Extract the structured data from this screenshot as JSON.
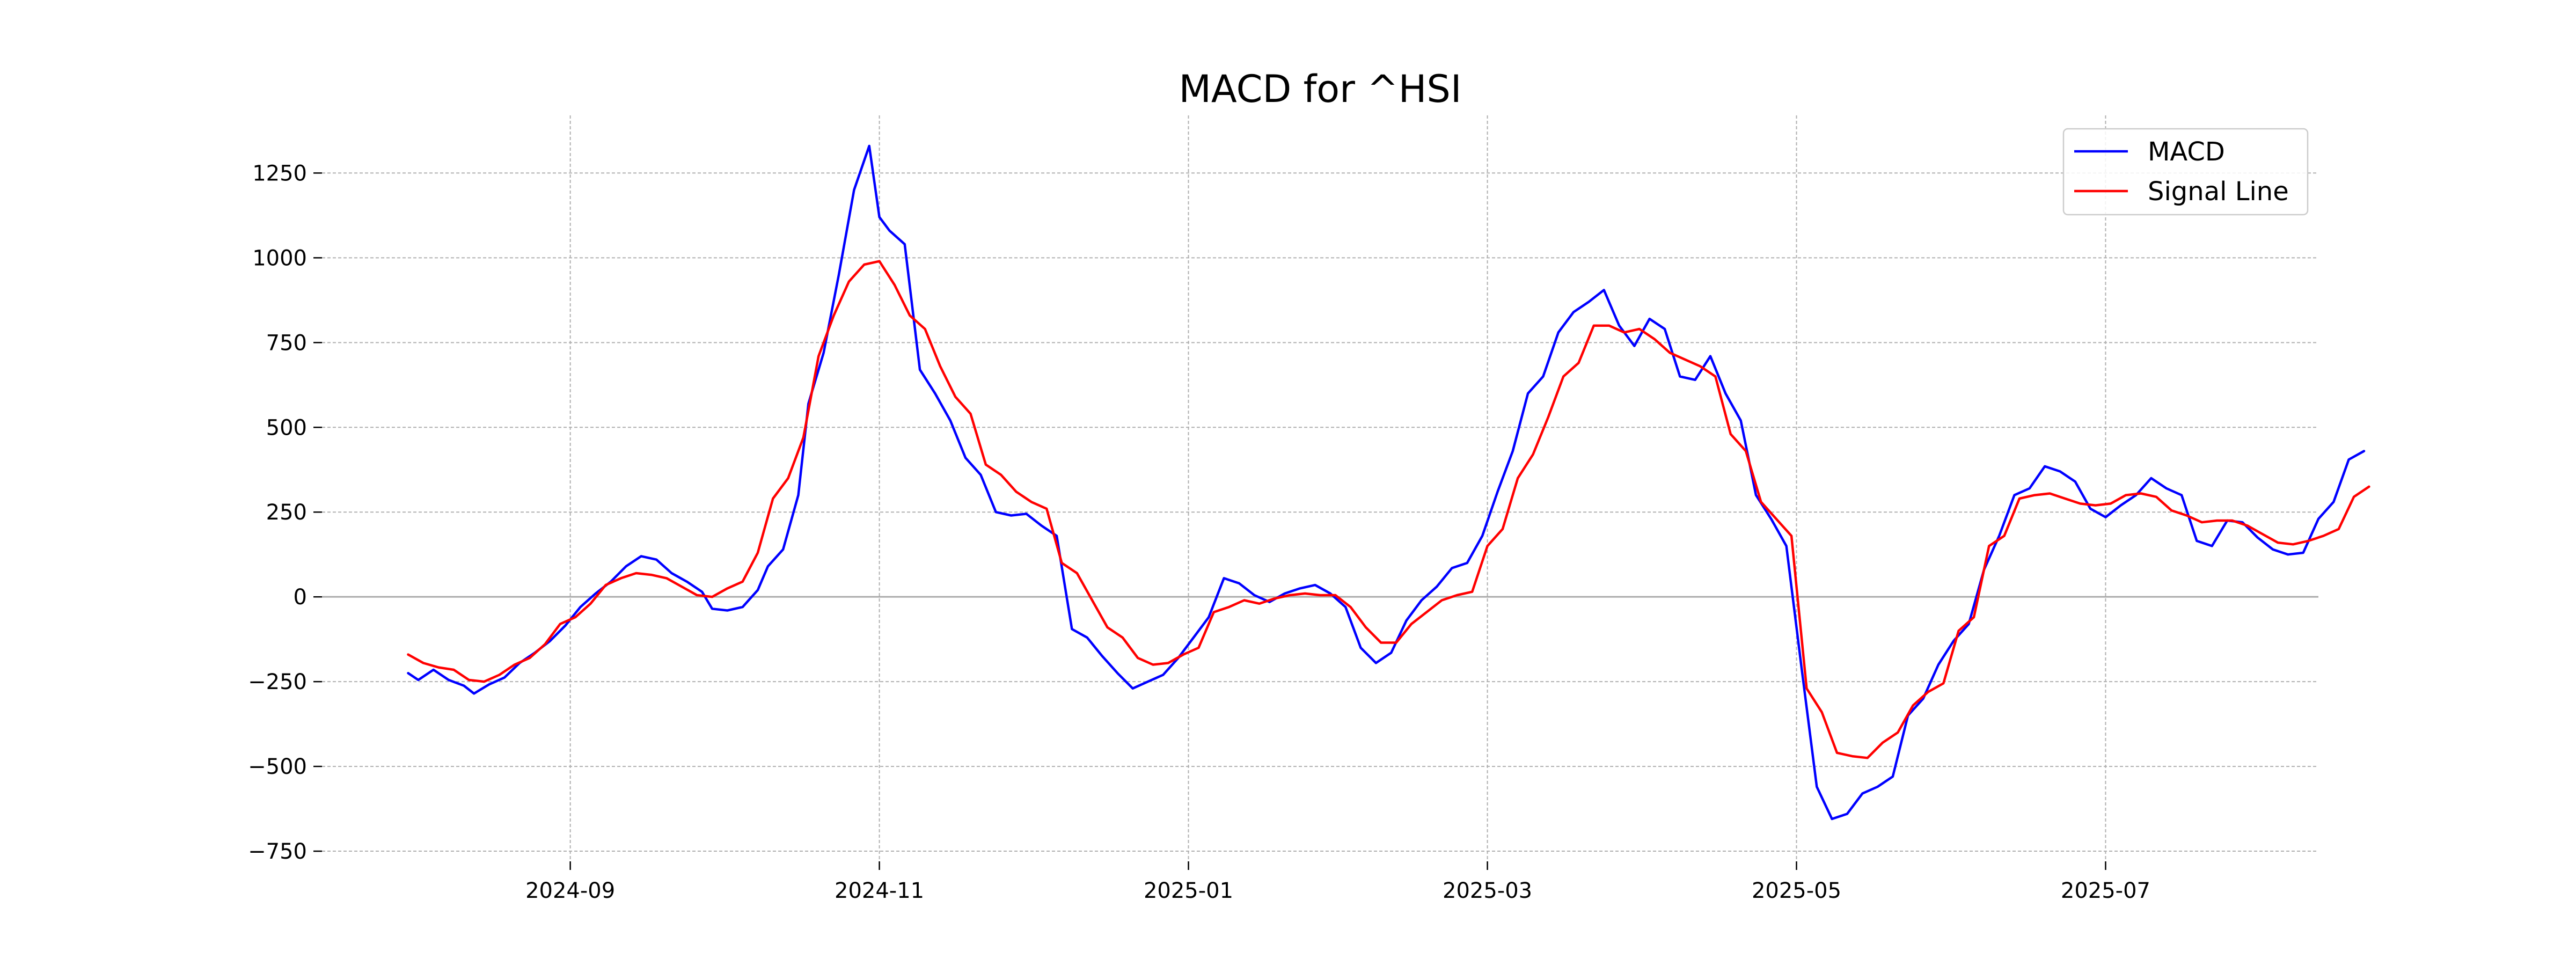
{
  "chart_data": {
    "type": "line",
    "title": "MACD for ^HSI",
    "xlabel": "",
    "ylabel": "",
    "ylim": [
      -780,
      1420
    ],
    "yticks": [
      -750,
      -500,
      -250,
      0,
      250,
      500,
      750,
      1000,
      1250
    ],
    "ytick_labels": [
      "−750",
      "−500",
      "−250",
      "0",
      "250",
      "500",
      "750",
      "1000",
      "1250"
    ],
    "xlim": [
      "2024-07-14",
      "2025-08-12"
    ],
    "xticks": [
      "2024-09-01",
      "2024-11-01",
      "2025-01-01",
      "2025-03-01",
      "2025-05-01",
      "2025-07-01"
    ],
    "xtick_labels": [
      "2024-09",
      "2024-11",
      "2025-01",
      "2025-03",
      "2025-05",
      "2025-07"
    ],
    "grid": true,
    "zero_line": true,
    "legend": {
      "position": "top-right",
      "entries": [
        "MACD",
        "Signal Line"
      ]
    },
    "series": [
      {
        "name": "MACD",
        "color": "#0000ff",
        "points": [
          [
            "2024-07-31",
            -225
          ],
          [
            "2024-08-02",
            -245
          ],
          [
            "2024-08-05",
            -215
          ],
          [
            "2024-08-08",
            -245
          ],
          [
            "2024-08-11",
            -262
          ],
          [
            "2024-08-13",
            -285
          ],
          [
            "2024-08-16",
            -258
          ],
          [
            "2024-08-19",
            -238
          ],
          [
            "2024-08-22",
            -195
          ],
          [
            "2024-08-25",
            -165
          ],
          [
            "2024-08-28",
            -130
          ],
          [
            "2024-08-31",
            -85
          ],
          [
            "2024-09-03",
            -30
          ],
          [
            "2024-09-06",
            10
          ],
          [
            "2024-09-09",
            45
          ],
          [
            "2024-09-12",
            90
          ],
          [
            "2024-09-15",
            120
          ],
          [
            "2024-09-18",
            110
          ],
          [
            "2024-09-21",
            70
          ],
          [
            "2024-09-24",
            45
          ],
          [
            "2024-09-27",
            15
          ],
          [
            "2024-09-29",
            -35
          ],
          [
            "2024-10-02",
            -40
          ],
          [
            "2024-10-05",
            -30
          ],
          [
            "2024-10-08",
            20
          ],
          [
            "2024-10-10",
            90
          ],
          [
            "2024-10-13",
            140
          ],
          [
            "2024-10-16",
            300
          ],
          [
            "2024-10-18",
            570
          ],
          [
            "2024-10-21",
            720
          ],
          [
            "2024-10-24",
            950
          ],
          [
            "2024-10-27",
            1200
          ],
          [
            "2024-10-30",
            1330
          ],
          [
            "2024-11-01",
            1120
          ],
          [
            "2024-11-03",
            1080
          ],
          [
            "2024-11-06",
            1040
          ],
          [
            "2024-11-09",
            670
          ],
          [
            "2024-11-12",
            600
          ],
          [
            "2024-11-15",
            520
          ],
          [
            "2024-11-18",
            410
          ],
          [
            "2024-11-21",
            360
          ],
          [
            "2024-11-24",
            250
          ],
          [
            "2024-11-27",
            240
          ],
          [
            "2024-11-30",
            245
          ],
          [
            "2024-12-03",
            210
          ],
          [
            "2024-12-06",
            180
          ],
          [
            "2024-12-09",
            -95
          ],
          [
            "2024-12-12",
            -120
          ],
          [
            "2024-12-15",
            -175
          ],
          [
            "2024-12-18",
            -225
          ],
          [
            "2024-12-21",
            -270
          ],
          [
            "2024-12-24",
            -250
          ],
          [
            "2024-12-27",
            -230
          ],
          [
            "2024-12-30",
            -180
          ],
          [
            "2025-01-02",
            -120
          ],
          [
            "2025-01-05",
            -60
          ],
          [
            "2025-01-08",
            55
          ],
          [
            "2025-01-11",
            40
          ],
          [
            "2025-01-14",
            5
          ],
          [
            "2025-01-17",
            -15
          ],
          [
            "2025-01-20",
            10
          ],
          [
            "2025-01-23",
            25
          ],
          [
            "2025-01-26",
            35
          ],
          [
            "2025-01-29",
            10
          ],
          [
            "2025-02-01",
            -30
          ],
          [
            "2025-02-04",
            -150
          ],
          [
            "2025-02-07",
            -195
          ],
          [
            "2025-02-10",
            -165
          ],
          [
            "2025-02-13",
            -70
          ],
          [
            "2025-02-16",
            -10
          ],
          [
            "2025-02-19",
            30
          ],
          [
            "2025-02-22",
            85
          ],
          [
            "2025-02-25",
            100
          ],
          [
            "2025-02-28",
            180
          ],
          [
            "2025-03-03",
            310
          ],
          [
            "2025-03-06",
            430
          ],
          [
            "2025-03-09",
            600
          ],
          [
            "2025-03-12",
            650
          ],
          [
            "2025-03-15",
            780
          ],
          [
            "2025-03-18",
            840
          ],
          [
            "2025-03-21",
            870
          ],
          [
            "2025-03-24",
            905
          ],
          [
            "2025-03-27",
            800
          ],
          [
            "2025-03-30",
            740
          ],
          [
            "2025-04-02",
            820
          ],
          [
            "2025-04-05",
            790
          ],
          [
            "2025-04-08",
            650
          ],
          [
            "2025-04-11",
            640
          ],
          [
            "2025-04-14",
            710
          ],
          [
            "2025-04-17",
            600
          ],
          [
            "2025-04-20",
            520
          ],
          [
            "2025-04-23",
            300
          ],
          [
            "2025-04-26",
            230
          ],
          [
            "2025-04-29",
            150
          ],
          [
            "2025-05-02",
            -210
          ],
          [
            "2025-05-05",
            -560
          ],
          [
            "2025-05-08",
            -655
          ],
          [
            "2025-05-11",
            -640
          ],
          [
            "2025-05-14",
            -580
          ],
          [
            "2025-05-17",
            -560
          ],
          [
            "2025-05-20",
            -530
          ],
          [
            "2025-05-23",
            -350
          ],
          [
            "2025-05-26",
            -300
          ],
          [
            "2025-05-29",
            -200
          ],
          [
            "2025-06-01",
            -130
          ],
          [
            "2025-06-04",
            -80
          ],
          [
            "2025-06-07",
            80
          ],
          [
            "2025-06-10",
            180
          ],
          [
            "2025-06-13",
            300
          ],
          [
            "2025-06-16",
            320
          ],
          [
            "2025-06-19",
            385
          ],
          [
            "2025-06-22",
            370
          ],
          [
            "2025-06-25",
            340
          ],
          [
            "2025-06-28",
            260
          ],
          [
            "2025-07-01",
            235
          ],
          [
            "2025-07-04",
            270
          ],
          [
            "2025-07-07",
            300
          ],
          [
            "2025-07-10",
            350
          ],
          [
            "2025-07-13",
            320
          ],
          [
            "2025-07-16",
            300
          ],
          [
            "2025-07-19",
            165
          ],
          [
            "2025-07-22",
            150
          ],
          [
            "2025-07-25",
            225
          ],
          [
            "2025-07-28",
            220
          ],
          [
            "2025-07-31",
            175
          ],
          [
            "2025-08-03",
            140
          ],
          [
            "2025-08-06",
            125
          ],
          [
            "2025-08-09",
            130
          ],
          [
            "2025-08-12",
            230
          ],
          [
            "2025-08-15",
            280
          ],
          [
            "2025-08-18",
            405
          ],
          [
            "2025-08-21",
            430
          ]
        ]
      },
      {
        "name": "Signal Line",
        "color": "#ff0000",
        "points": [
          [
            "2024-07-31",
            -170
          ],
          [
            "2024-08-03",
            -195
          ],
          [
            "2024-08-06",
            -208
          ],
          [
            "2024-08-09",
            -215
          ],
          [
            "2024-08-12",
            -245
          ],
          [
            "2024-08-15",
            -250
          ],
          [
            "2024-08-18",
            -230
          ],
          [
            "2024-08-21",
            -200
          ],
          [
            "2024-08-24",
            -180
          ],
          [
            "2024-08-27",
            -140
          ],
          [
            "2024-08-30",
            -80
          ],
          [
            "2024-09-02",
            -60
          ],
          [
            "2024-09-05",
            -20
          ],
          [
            "2024-09-08",
            35
          ],
          [
            "2024-09-11",
            55
          ],
          [
            "2024-09-14",
            70
          ],
          [
            "2024-09-17",
            65
          ],
          [
            "2024-09-20",
            55
          ],
          [
            "2024-09-23",
            30
          ],
          [
            "2024-09-26",
            5
          ],
          [
            "2024-09-29",
            0
          ],
          [
            "2024-10-02",
            25
          ],
          [
            "2024-10-05",
            45
          ],
          [
            "2024-10-08",
            130
          ],
          [
            "2024-10-11",
            290
          ],
          [
            "2024-10-14",
            350
          ],
          [
            "2024-10-17",
            470
          ],
          [
            "2024-10-20",
            710
          ],
          [
            "2024-10-23",
            830
          ],
          [
            "2024-10-26",
            930
          ],
          [
            "2024-10-29",
            980
          ],
          [
            "2024-11-01",
            990
          ],
          [
            "2024-11-04",
            920
          ],
          [
            "2024-11-07",
            830
          ],
          [
            "2024-11-10",
            790
          ],
          [
            "2024-11-13",
            680
          ],
          [
            "2024-11-16",
            590
          ],
          [
            "2024-11-19",
            540
          ],
          [
            "2024-11-22",
            390
          ],
          [
            "2024-11-25",
            360
          ],
          [
            "2024-11-28",
            310
          ],
          [
            "2024-12-01",
            280
          ],
          [
            "2024-12-04",
            260
          ],
          [
            "2024-12-07",
            100
          ],
          [
            "2024-12-10",
            70
          ],
          [
            "2024-12-13",
            -10
          ],
          [
            "2024-12-16",
            -90
          ],
          [
            "2024-12-19",
            -120
          ],
          [
            "2024-12-22",
            -180
          ],
          [
            "2024-12-25",
            -200
          ],
          [
            "2024-12-28",
            -195
          ],
          [
            "2024-12-31",
            -170
          ],
          [
            "2025-01-03",
            -150
          ],
          [
            "2025-01-06",
            -45
          ],
          [
            "2025-01-09",
            -30
          ],
          [
            "2025-01-12",
            -10
          ],
          [
            "2025-01-15",
            -20
          ],
          [
            "2025-01-18",
            -5
          ],
          [
            "2025-01-21",
            5
          ],
          [
            "2025-01-24",
            10
          ],
          [
            "2025-01-27",
            5
          ],
          [
            "2025-01-30",
            5
          ],
          [
            "2025-02-02",
            -30
          ],
          [
            "2025-02-05",
            -90
          ],
          [
            "2025-02-08",
            -135
          ],
          [
            "2025-02-11",
            -135
          ],
          [
            "2025-02-14",
            -80
          ],
          [
            "2025-02-17",
            -45
          ],
          [
            "2025-02-20",
            -10
          ],
          [
            "2025-02-23",
            5
          ],
          [
            "2025-02-26",
            15
          ],
          [
            "2025-03-01",
            150
          ],
          [
            "2025-03-04",
            200
          ],
          [
            "2025-03-07",
            350
          ],
          [
            "2025-03-10",
            420
          ],
          [
            "2025-03-13",
            530
          ],
          [
            "2025-03-16",
            650
          ],
          [
            "2025-03-19",
            690
          ],
          [
            "2025-03-22",
            800
          ],
          [
            "2025-03-25",
            800
          ],
          [
            "2025-03-28",
            780
          ],
          [
            "2025-03-31",
            790
          ],
          [
            "2025-04-03",
            760
          ],
          [
            "2025-04-06",
            720
          ],
          [
            "2025-04-09",
            700
          ],
          [
            "2025-04-12",
            680
          ],
          [
            "2025-04-15",
            650
          ],
          [
            "2025-04-18",
            480
          ],
          [
            "2025-04-21",
            430
          ],
          [
            "2025-04-24",
            280
          ],
          [
            "2025-04-27",
            230
          ],
          [
            "2025-04-30",
            180
          ],
          [
            "2025-05-03",
            -270
          ],
          [
            "2025-05-06",
            -340
          ],
          [
            "2025-05-09",
            -460
          ],
          [
            "2025-05-12",
            -470
          ],
          [
            "2025-05-15",
            -475
          ],
          [
            "2025-05-18",
            -430
          ],
          [
            "2025-05-21",
            -400
          ],
          [
            "2025-05-24",
            -320
          ],
          [
            "2025-05-27",
            -280
          ],
          [
            "2025-05-30",
            -255
          ],
          [
            "2025-06-02",
            -100
          ],
          [
            "2025-06-05",
            -60
          ],
          [
            "2025-06-08",
            150
          ],
          [
            "2025-06-11",
            180
          ],
          [
            "2025-06-14",
            290
          ],
          [
            "2025-06-17",
            300
          ],
          [
            "2025-06-20",
            305
          ],
          [
            "2025-06-23",
            290
          ],
          [
            "2025-06-26",
            275
          ],
          [
            "2025-06-29",
            270
          ],
          [
            "2025-07-02",
            275
          ],
          [
            "2025-07-05",
            300
          ],
          [
            "2025-07-08",
            305
          ],
          [
            "2025-07-11",
            295
          ],
          [
            "2025-07-14",
            255
          ],
          [
            "2025-07-17",
            240
          ],
          [
            "2025-07-20",
            220
          ],
          [
            "2025-07-23",
            225
          ],
          [
            "2025-07-26",
            225
          ],
          [
            "2025-07-29",
            210
          ],
          [
            "2025-08-01",
            185
          ],
          [
            "2025-08-04",
            160
          ],
          [
            "2025-08-07",
            155
          ],
          [
            "2025-08-10",
            165
          ],
          [
            "2025-08-13",
            180
          ],
          [
            "2025-08-16",
            200
          ],
          [
            "2025-08-19",
            295
          ],
          [
            "2025-08-22",
            325
          ]
        ]
      }
    ]
  }
}
